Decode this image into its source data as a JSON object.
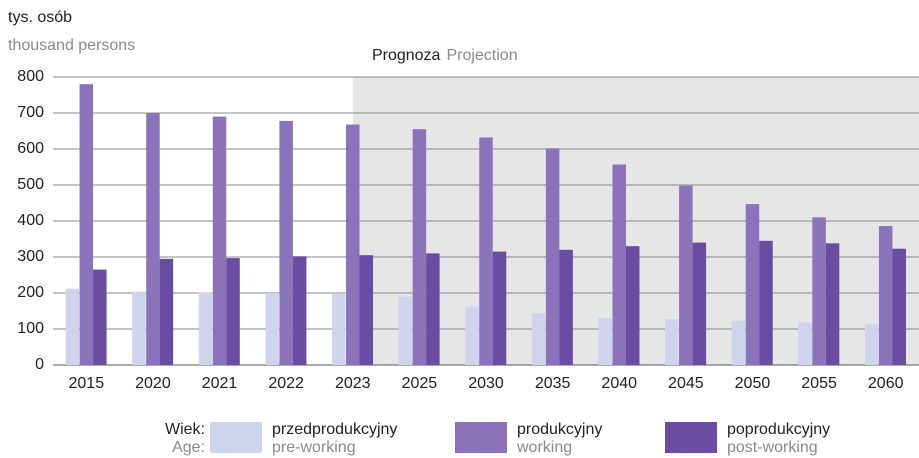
{
  "chart_data": {
    "type": "bar",
    "y_label": "tys. osób",
    "y_label_en": "thousand persons",
    "projection": {
      "label": "Prognoza",
      "label_en": "Projection",
      "start": "2025"
    },
    "legend_title": "Wiek:",
    "legend_title_en": "Age:",
    "categories": [
      "2015",
      "2020",
      "2021",
      "2022",
      "2023",
      "2025",
      "2030",
      "2035",
      "2040",
      "2045",
      "2050",
      "2055",
      "2060"
    ],
    "series": [
      {
        "name": "przedprodukcyjny",
        "name_en": "pre-working",
        "color": "#cfd3ec",
        "values": [
          212,
          204,
          202,
          200,
          197,
          190,
          163,
          143,
          130,
          127,
          123,
          118,
          113
        ]
      },
      {
        "name": "produkcyjny",
        "name_en": "working",
        "color": "#8b73b9",
        "values": [
          780,
          700,
          690,
          678,
          668,
          655,
          632,
          602,
          557,
          498,
          447,
          410,
          386
        ]
      },
      {
        "name": "poprodukcyjny",
        "name_en": "post-working",
        "color": "#6a4ca0",
        "values": [
          265,
          295,
          297,
          302,
          305,
          310,
          315,
          320,
          330,
          340,
          345,
          338,
          323
        ]
      }
    ],
    "ylim": [
      0,
      800
    ],
    "yticks": [
      0,
      100,
      200,
      300,
      400,
      500,
      600,
      700,
      800
    ],
    "grid": true
  }
}
